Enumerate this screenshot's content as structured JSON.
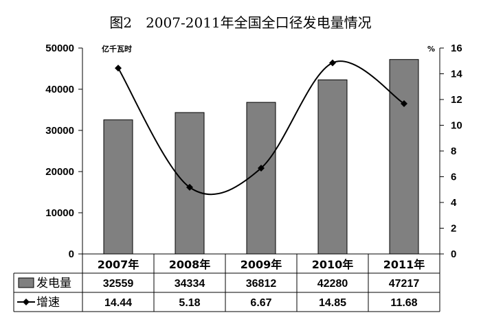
{
  "chart_data": {
    "type": "bar",
    "title": "图2　2007-2011年全国全口径发电量情况",
    "categories": [
      "2007年",
      "2008年",
      "2009年",
      "2010年",
      "2011年"
    ],
    "series": [
      {
        "name": "发电量",
        "kind": "bar",
        "axis": "left",
        "color": "#808080",
        "values": [
          32559,
          34334,
          36812,
          42280,
          47217
        ]
      },
      {
        "name": "增速",
        "kind": "line",
        "axis": "right",
        "color": "#000000",
        "marker": "diamond",
        "values": [
          14.44,
          5.18,
          6.67,
          14.85,
          11.68
        ]
      }
    ],
    "y_left": {
      "unit": "亿千瓦时",
      "min": 0,
      "max": 50000,
      "ticks": [
        "0",
        "10000",
        "20000",
        "30000",
        "40000",
        "50000"
      ]
    },
    "y_right": {
      "unit": "%",
      "min": 0,
      "max": 16,
      "ticks": [
        "0",
        "2",
        "4",
        "6",
        "8",
        "10",
        "12",
        "14",
        "16"
      ]
    },
    "data_table": {
      "rows": [
        {
          "label": "发电量",
          "values": [
            "32559",
            "34334",
            "36812",
            "42280",
            "47217"
          ]
        },
        {
          "label": "增速",
          "values": [
            "14.44",
            "5.18",
            "6.67",
            "14.85",
            "11.68"
          ]
        }
      ]
    },
    "grid": false,
    "legend": "in data table"
  }
}
